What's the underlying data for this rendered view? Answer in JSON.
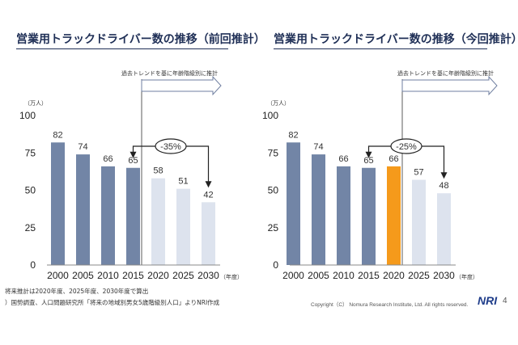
{
  "chart_data": [
    {
      "type": "bar",
      "title": "営業用トラックドライバー数の推移（前回推計）",
      "unit": "（万人）",
      "xunit": "（年度）",
      "annotation": "過去トレンドを基に年齢階級別に推計",
      "change_label": "-35%",
      "categories": [
        "2000",
        "2005",
        "2010",
        "2015",
        "2020",
        "2025",
        "2030"
      ],
      "values": [
        82,
        74,
        66,
        65,
        58,
        51,
        42
      ],
      "bar_colors": [
        "#7285a6",
        "#7285a6",
        "#7285a6",
        "#7285a6",
        "#dde3ee",
        "#dde3ee",
        "#dde3ee"
      ],
      "yticks": [
        "0",
        "25",
        "50",
        "75",
        "100"
      ],
      "ylim": [
        0,
        100
      ]
    },
    {
      "type": "bar",
      "title": "営業用トラックドライバー数の推移（今回推計）",
      "unit": "（万人）",
      "xunit": "（年度）",
      "annotation": "過去トレンドを基に年齢階級別に推計",
      "change_label": "-25%",
      "categories": [
        "2000",
        "2005",
        "2010",
        "2015",
        "2020",
        "2025",
        "2030"
      ],
      "values": [
        82,
        74,
        66,
        65,
        66,
        57,
        48
      ],
      "bar_colors": [
        "#7285a6",
        "#7285a6",
        "#7285a6",
        "#7285a6",
        "#f59a1b",
        "#dde3ee",
        "#dde3ee"
      ],
      "yticks": [
        "0",
        "25",
        "50",
        "75",
        "100"
      ],
      "ylim": [
        0,
        100
      ]
    }
  ],
  "footer": {
    "note1": "将来推計は2020年度、2025年度、2030年度で算出",
    "note2": "）国勢調査、人口問題研究所「将来の地域別男女5歳階級別人口」よりNRI作成",
    "copyright": "Copyright（C） Nomura Research Institute, Ltd. All rights reserved.",
    "logo": "NRI",
    "page": "4"
  }
}
